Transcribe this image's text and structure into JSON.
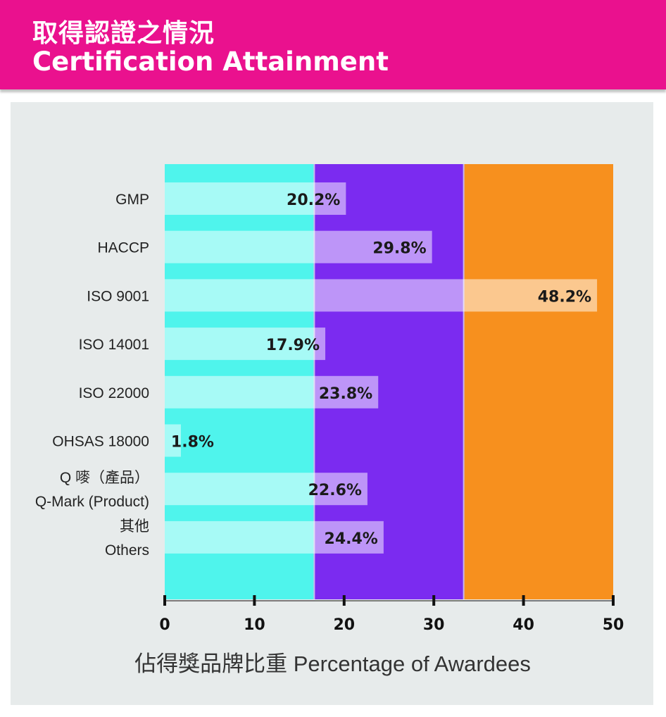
{
  "header": {
    "title_zh": "取得認證之情況",
    "title_en": "Certification Attainment",
    "background": "#ea118e"
  },
  "chart_data": {
    "type": "bar",
    "orientation": "horizontal",
    "categories": [
      [
        "GMP"
      ],
      [
        "HACCP"
      ],
      [
        "ISO 9001"
      ],
      [
        "ISO 14001"
      ],
      [
        "ISO 22000"
      ],
      [
        "OHSAS 18000"
      ],
      [
        "Q 嘜（產品）",
        "Q-Mark (Product)"
      ],
      [
        "其他",
        "Others"
      ]
    ],
    "values": [
      20.2,
      29.8,
      48.2,
      17.9,
      23.8,
      1.8,
      22.6,
      24.4
    ],
    "value_labels": [
      "20.2%",
      "29.8%",
      "48.2%",
      "17.9%",
      "23.8%",
      "1.8%",
      "22.6%",
      "24.4%"
    ],
    "xlabel": "佔得獎品牌比重 Percentage of Awardees",
    "xlim": [
      0,
      50
    ],
    "xticks": [
      0,
      10,
      20,
      30,
      40,
      50
    ],
    "grid": false,
    "background_bands": [
      {
        "from": 0,
        "to": 16.67,
        "color": "#4ff4ec"
      },
      {
        "from": 16.67,
        "to": 33.33,
        "color": "#7b2bf0"
      },
      {
        "from": 33.33,
        "to": 50,
        "color": "#f7901e"
      }
    ],
    "bar_color": "#ffffff",
    "bar_opacity": 0.5
  }
}
